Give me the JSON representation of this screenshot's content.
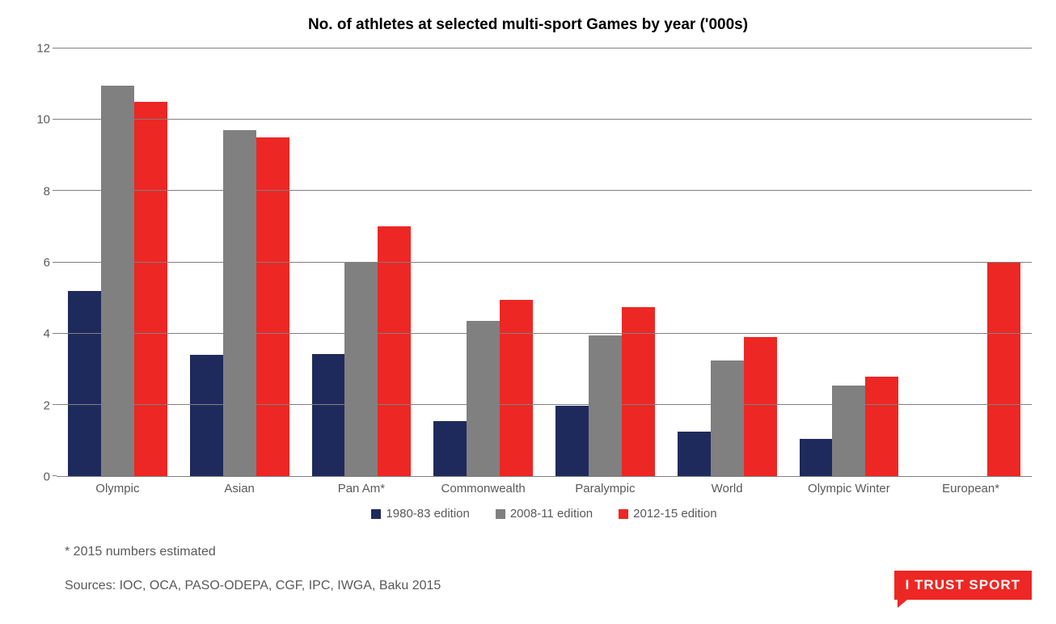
{
  "chart": {
    "type": "bar",
    "title": "No. of athletes at selected multi-sport Games by year ('000s)",
    "title_fontsize": 19,
    "title_color": "#000000",
    "background_color": "#ffffff",
    "axis_label_color": "#595959",
    "axis_label_fontsize": 15,
    "grid_color": "#808080",
    "ylim": [
      0,
      12
    ],
    "ytick_step": 2,
    "yticks": [
      0,
      2,
      4,
      6,
      8,
      10,
      12
    ],
    "categories": [
      "Olympic",
      "Asian",
      "Pan Am*",
      "Commonwealth",
      "Paralympic",
      "World",
      "Olympic Winter",
      "European*"
    ],
    "series": [
      {
        "name": "1980-83 edition",
        "color": "#1f2a5c",
        "values": [
          5.2,
          3.4,
          3.43,
          1.55,
          1.97,
          1.25,
          1.05,
          0
        ]
      },
      {
        "name": "2008-11 edition",
        "color": "#808080",
        "values": [
          10.95,
          9.7,
          6.0,
          4.35,
          3.95,
          3.25,
          2.55,
          0
        ]
      },
      {
        "name": "2012-15 edition",
        "color": "#ed2724",
        "values": [
          10.5,
          9.5,
          7.0,
          4.95,
          4.75,
          3.9,
          2.8,
          6.0
        ]
      }
    ],
    "bar_group_gap_ratio": 0.25
  },
  "legend": {
    "fontsize": 15,
    "text_color": "#595959",
    "swatch_size": 12
  },
  "footnotes": {
    "note": "* 2015 numbers estimated",
    "sources": "Sources: IOC, OCA, PASO-ODEPA, CGF, IPC, IWGA, Baku 2015",
    "fontsize": 16,
    "text_color": "#595959"
  },
  "logo": {
    "text": "I TRUST SPORT",
    "background_color": "#ed2724",
    "text_color": "#ffffff",
    "fontsize": 17
  }
}
